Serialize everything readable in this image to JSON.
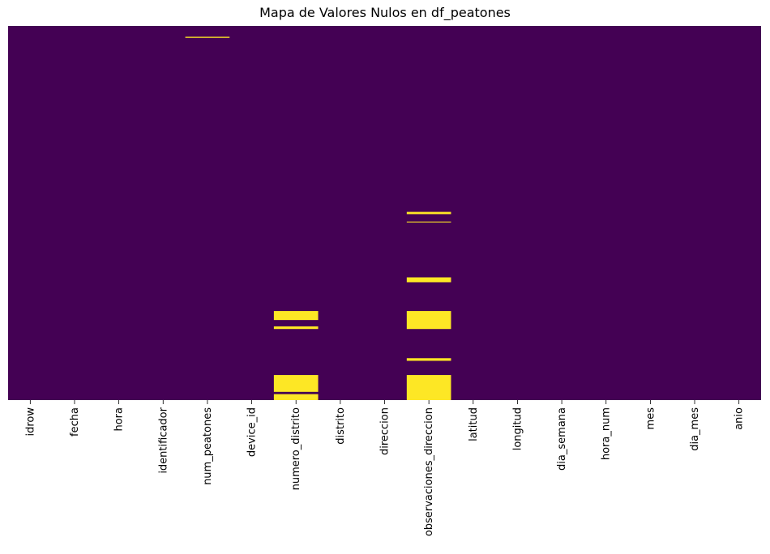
{
  "chart_data": {
    "type": "heatmap",
    "title": "Mapa de Valores Nulos en df_peatones",
    "xlabel": "",
    "ylabel": "",
    "colorbar": false,
    "colors": {
      "present": "#440154",
      "missing": "#fde725"
    },
    "columns": [
      "idrow",
      "fecha",
      "hora",
      "identificador",
      "num_peatones",
      "device_id",
      "numero_distrito",
      "distrito",
      "direccion",
      "observaciones_direccion",
      "latitud",
      "longitud",
      "dia_semana",
      "hora_num",
      "mes",
      "dia_mes",
      "anio"
    ],
    "row_range": [
      0,
      1
    ],
    "missing_segments": [
      {
        "column": "num_peatones",
        "start": 0.029,
        "end": 0.032
      },
      {
        "column": "numero_distrito",
        "start": 0.762,
        "end": 0.786
      },
      {
        "column": "numero_distrito",
        "start": 0.803,
        "end": 0.81
      },
      {
        "column": "numero_distrito",
        "start": 0.933,
        "end": 0.978
      },
      {
        "column": "numero_distrito",
        "start": 0.984,
        "end": 1.0
      },
      {
        "column": "observaciones_direccion",
        "start": 0.497,
        "end": 0.503
      },
      {
        "column": "observaciones_direccion",
        "start": 0.523,
        "end": 0.525
      },
      {
        "column": "observaciones_direccion",
        "start": 0.672,
        "end": 0.685
      },
      {
        "column": "observaciones_direccion",
        "start": 0.762,
        "end": 0.81
      },
      {
        "column": "observaciones_direccion",
        "start": 0.888,
        "end": 0.895
      },
      {
        "column": "observaciones_direccion",
        "start": 0.933,
        "end": 1.0
      }
    ]
  }
}
